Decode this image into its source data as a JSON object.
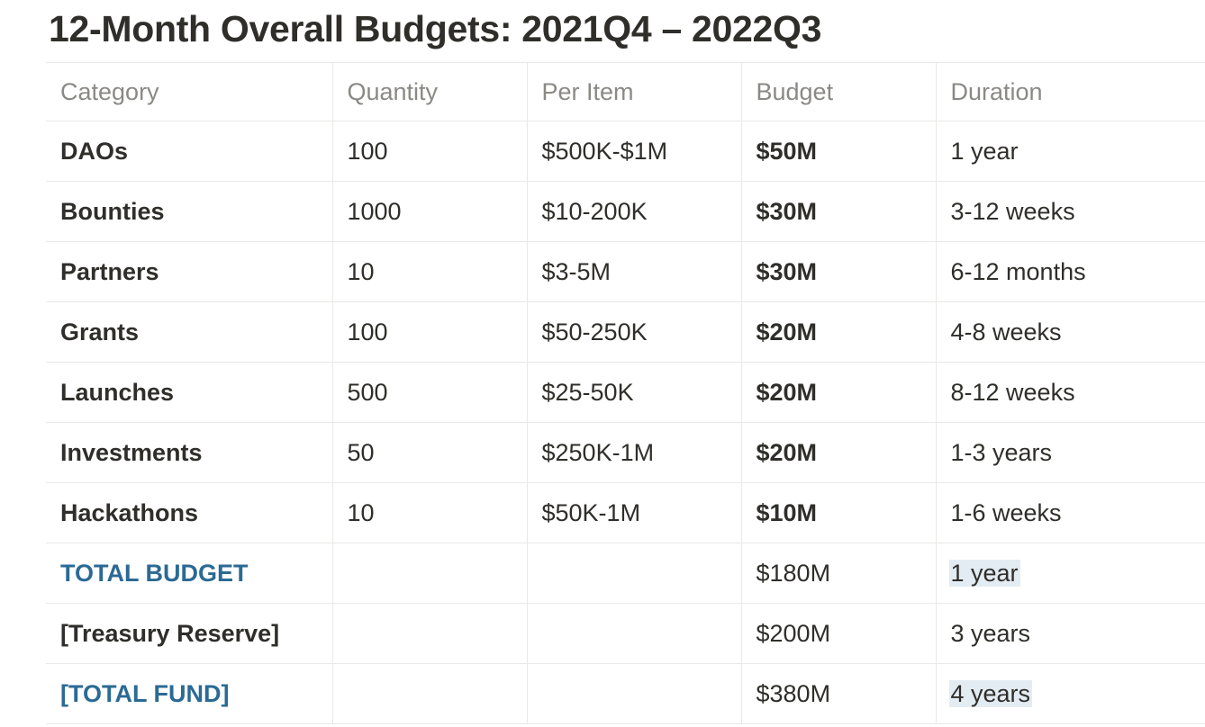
{
  "title": "12-Month Overall Budgets: 2021Q4 – 2022Q3",
  "table": {
    "headers": {
      "category": "Category",
      "quantity": "Quantity",
      "per_item": "Per Item",
      "budget": "Budget",
      "duration": "Duration"
    },
    "rows": [
      {
        "category": "DAOs",
        "quantity": "100",
        "per_item": "$500K-$1M",
        "budget": "$50M",
        "duration": "1 year"
      },
      {
        "category": "Bounties",
        "quantity": "1000",
        "per_item": "$10-200K",
        "budget": "$30M",
        "duration": "3-12 weeks"
      },
      {
        "category": "Partners",
        "quantity": "10",
        "per_item": "$3-5M",
        "budget": "$30M",
        "duration": "6-12 months"
      },
      {
        "category": "Grants",
        "quantity": "100",
        "per_item": "$50-250K",
        "budget": "$20M",
        "duration": "4-8 weeks"
      },
      {
        "category": "Launches",
        "quantity": "500",
        "per_item": "$25-50K",
        "budget": "$20M",
        "duration": "8-12 weeks"
      },
      {
        "category": "Investments",
        "quantity": "50",
        "per_item": "$250K-1M",
        "budget": "$20M",
        "duration": "1-3 years"
      },
      {
        "category": "Hackathons",
        "quantity": "10",
        "per_item": "$50K-1M",
        "budget": "$10M",
        "duration": "1-6 weeks"
      }
    ],
    "summary": [
      {
        "category": "TOTAL BUDGET",
        "budget": "$180M",
        "duration": "1 year"
      },
      {
        "category": "[Treasury Reserve]",
        "budget": "$200M",
        "duration": "3 years"
      },
      {
        "category": "[TOTAL FUND]",
        "budget": "$380M",
        "duration": "4 years"
      }
    ]
  },
  "colors": {
    "text": "#2f2e2a",
    "header_text": "#8a8985",
    "link_blue": "#2b6a94",
    "highlight": "#e3ecf3",
    "border": "#e9e9e7"
  }
}
